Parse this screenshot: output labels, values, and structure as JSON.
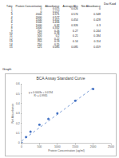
{
  "header": {
    "title": "Dai Kaid"
  },
  "table": {
    "header": [
      "Tube",
      "Protein Concentration",
      "Absorbance",
      "Average Abs",
      "Net Absorbance"
    ],
    "rows": [
      [
        1,
        0,
        0.025,
        0.026,
        0
      ],
      [
        2,
        0,
        0.027,
        null,
        null
      ],
      [
        3,
        2000,
        0.571,
        0.574,
        0.548
      ],
      [
        4,
        2000,
        0.577,
        null,
        null
      ],
      [
        5,
        1500,
        0.452,
        0.454,
        0.428
      ],
      [
        6,
        1500,
        0.456,
        null,
        null
      ],
      [
        7,
        1000,
        0.32,
        0.326,
        0.3
      ],
      [
        8,
        1000,
        0.332,
        null,
        null
      ],
      [
        9,
        750,
        0.26,
        0.27,
        0.244
      ],
      [
        10,
        750,
        0.28,
        null,
        null
      ],
      [
        11,
        500,
        0.2,
        0.21,
        0.184
      ],
      [
        12,
        500,
        0.22,
        null,
        null
      ],
      [
        13,
        250,
        0.13,
        0.14,
        0.114
      ],
      [
        14,
        250,
        0.15,
        null,
        null
      ],
      [
        15,
        125,
        0.085,
        0.085,
        0.059
      ]
    ]
  },
  "section": "Graph",
  "chart_data": {
    "type": "scatter",
    "title": "BCA Assay Standard Curve",
    "x_label": "Protein Concentration (ug/ml)",
    "y_label": "Net Absorbance",
    "x": [
      0,
      125,
      250,
      500,
      750,
      1000,
      1500,
      2000
    ],
    "values": [
      0,
      0.059,
      0.114,
      0.184,
      0.244,
      0.3,
      0.428,
      0.548
    ],
    "color": "#4472c4",
    "marker": "circle",
    "trendline": {
      "x": [
        0,
        2000
      ],
      "y": [
        0.019,
        0.559
      ],
      "color": "#4472c4",
      "line_style": "dot"
    },
    "annotations": [
      "y = 0.0003x + 0.0194",
      "R² = 0.9935"
    ],
    "xlim": [
      0,
      2500
    ],
    "xticks": [
      0,
      500,
      1000,
      1500,
      2000,
      2500
    ],
    "ylim": [
      0,
      0.6
    ],
    "yticks": [
      0,
      0.1,
      0.2,
      0.3,
      0.4,
      0.5,
      0.6
    ],
    "grid": false,
    "legend": false
  }
}
